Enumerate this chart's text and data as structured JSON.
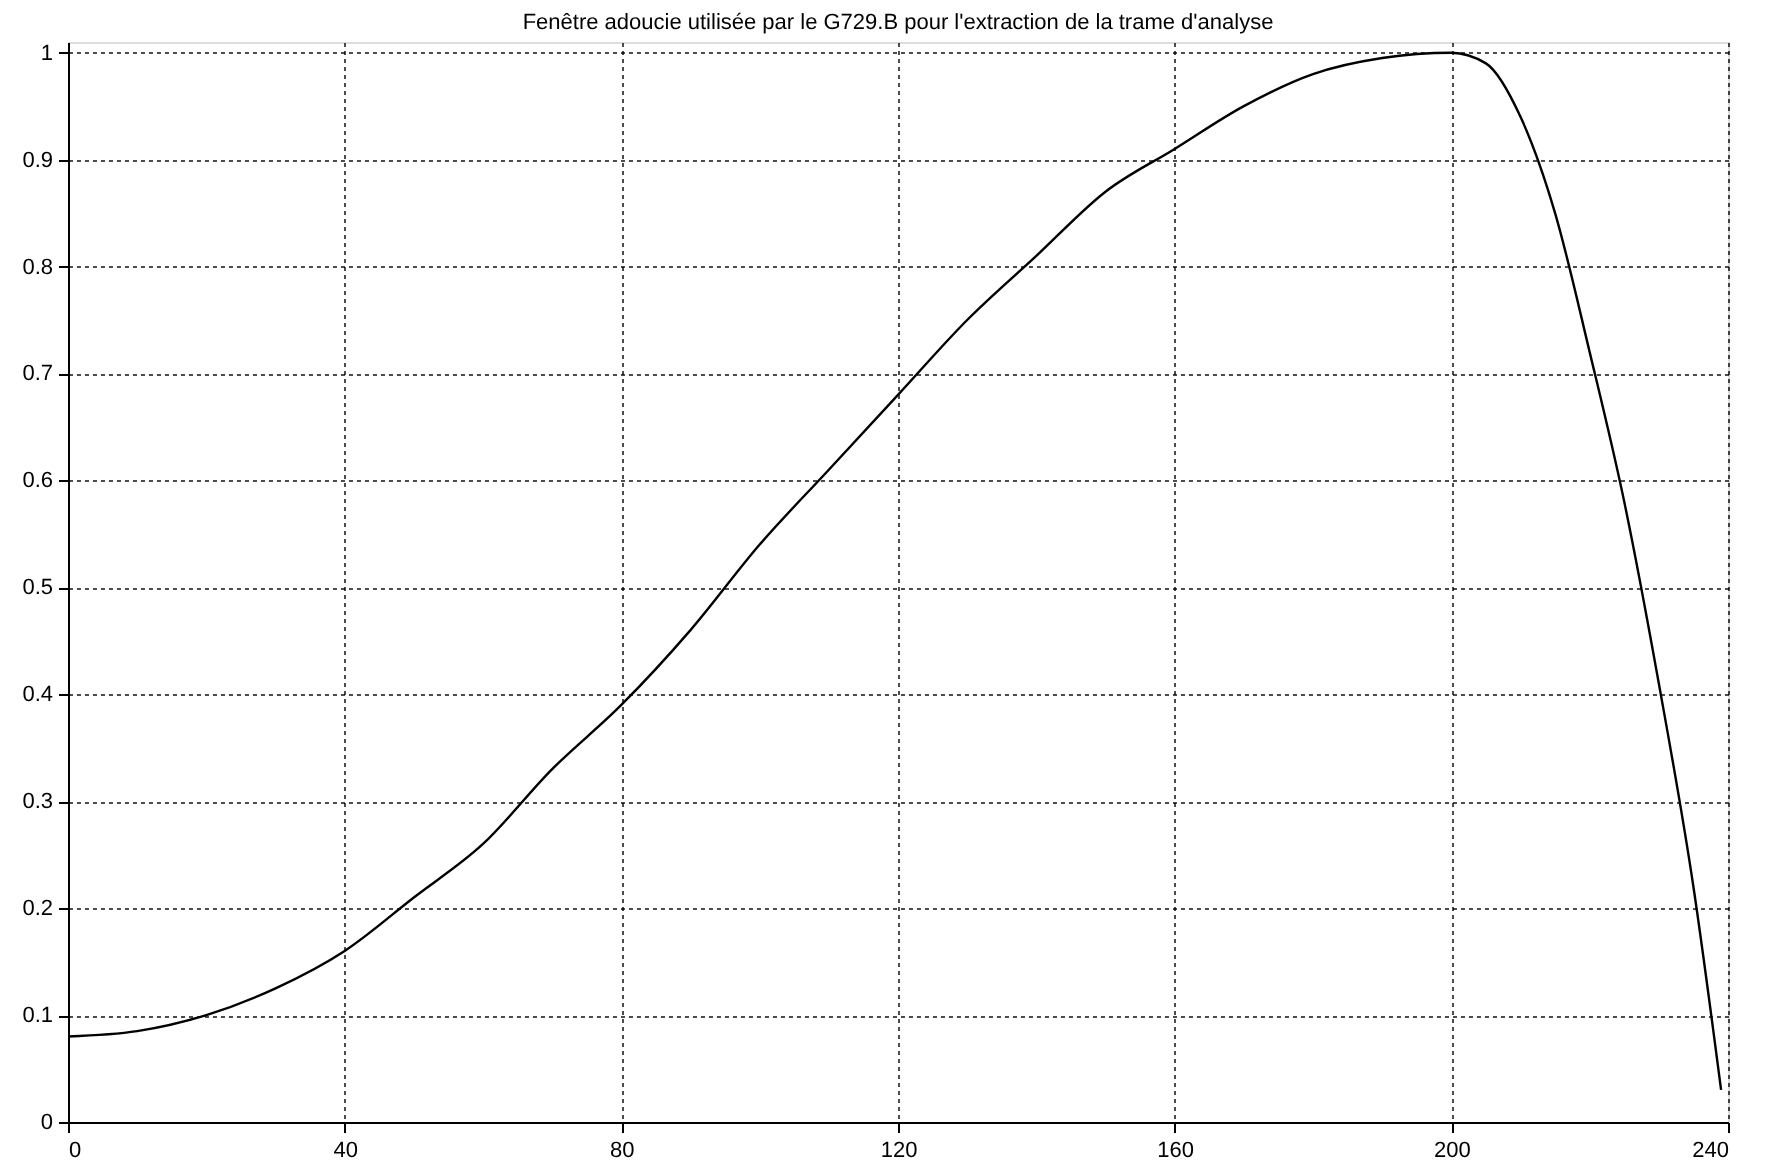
{
  "chart_data": {
    "type": "line",
    "title": "Fenêtre adoucie utilisée par le G729.B pour l'extraction de la trame d'analyse",
    "x": [
      0,
      10,
      20,
      30,
      40,
      50,
      60,
      70,
      80,
      90,
      100,
      110,
      120,
      130,
      140,
      150,
      160,
      170,
      180,
      190,
      200,
      205,
      210,
      215,
      220,
      225,
      230,
      235,
      239
    ],
    "series": [
      {
        "color": "#000000",
        "values": [
          0.08,
          0.085,
          0.1,
          0.125,
          0.16,
          0.21,
          0.26,
          0.33,
          0.39,
          0.46,
          0.54,
          0.61,
          0.68,
          0.75,
          0.81,
          0.87,
          0.91,
          0.95,
          0.98,
          0.995,
          1.0,
          0.99,
          0.94,
          0.85,
          0.72,
          0.58,
          0.41,
          0.22,
          0.03
        ]
      }
    ],
    "xlim": [
      0,
      240
    ],
    "xticks": [
      0,
      40,
      80,
      120,
      160,
      200,
      240
    ],
    "ylim": [
      0,
      1.01
    ],
    "yticks": [
      0,
      0.1,
      0.2,
      0.3,
      0.4,
      0.5,
      0.6,
      0.7,
      0.8,
      0.9,
      1
    ],
    "grid": true,
    "line_style": "solid",
    "marker": "none"
  }
}
